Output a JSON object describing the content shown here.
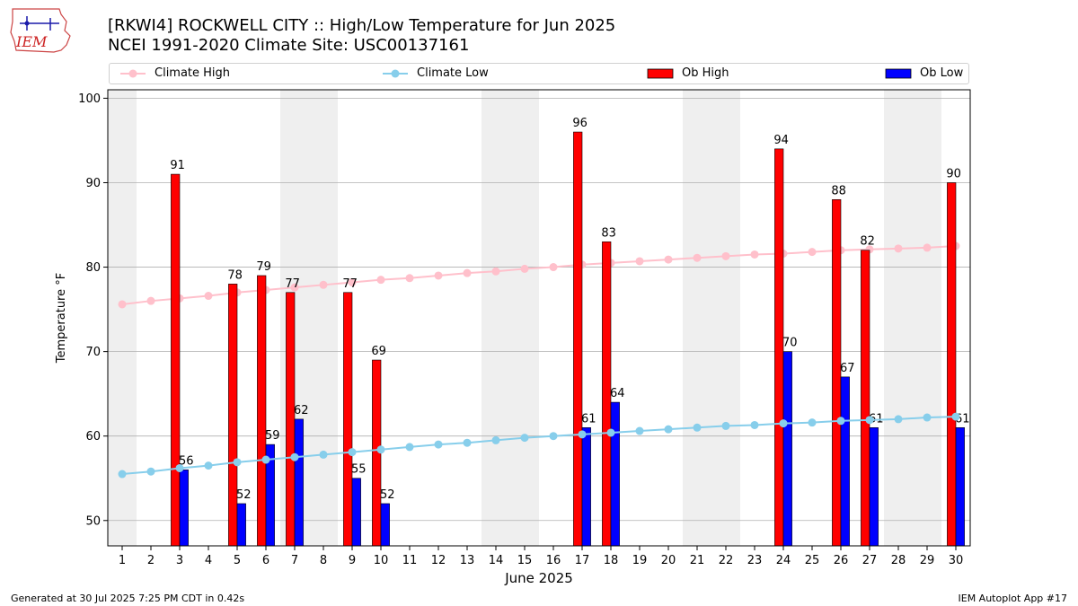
{
  "header": {
    "title_line1": "[RKWI4] ROCKWELL CITY :: High/Low Temperature for Jun 2025",
    "title_line2": "NCEI 1991-2020 Climate Site: USC00137161",
    "logo_text": "IEM"
  },
  "footer": {
    "left": "Generated at 30 Jul 2025 7:25 PM CDT in 0.42s",
    "right": "IEM Autoplot App #17"
  },
  "legend": {
    "climate_high": "Climate High",
    "climate_low": "Climate Low",
    "ob_high": "Ob High",
    "ob_low": "Ob Low"
  },
  "colors": {
    "climate_high": "#ffc0cb",
    "climate_low": "#87ceeb",
    "ob_high": "#ff0000",
    "ob_low": "#0000ff",
    "weekend_band": "#efefef",
    "grid": "#b0b0b0"
  },
  "chart_data": {
    "type": "bar",
    "title": "[RKWI4] ROCKWELL CITY :: High/Low Temperature for Jun 2025",
    "subtitle": "NCEI 1991-2020 Climate Site: USC00137161",
    "xlabel": "June 2025",
    "ylabel": "Temperature °F",
    "xlim": [
      0.5,
      30.5
    ],
    "ylim": [
      47,
      101
    ],
    "yticks": [
      50,
      60,
      70,
      80,
      90,
      100
    ],
    "x": [
      1,
      2,
      3,
      4,
      5,
      6,
      7,
      8,
      9,
      10,
      11,
      12,
      13,
      14,
      15,
      16,
      17,
      18,
      19,
      20,
      21,
      22,
      23,
      24,
      25,
      26,
      27,
      28,
      29,
      30
    ],
    "grid": "horizontal",
    "legend_position": "top",
    "weekend_days": [
      1,
      7,
      8,
      14,
      15,
      21,
      22,
      28,
      29
    ],
    "series": [
      {
        "name": "Climate High",
        "kind": "line",
        "values": [
          75.6,
          76.0,
          76.3,
          76.6,
          77.0,
          77.3,
          77.6,
          77.9,
          78.2,
          78.5,
          78.7,
          79.0,
          79.3,
          79.5,
          79.8,
          80.0,
          80.3,
          80.5,
          80.7,
          80.9,
          81.1,
          81.3,
          81.5,
          81.6,
          81.8,
          82.0,
          82.1,
          82.2,
          82.3,
          82.5
        ]
      },
      {
        "name": "Climate Low",
        "kind": "line",
        "values": [
          55.5,
          55.8,
          56.2,
          56.5,
          56.9,
          57.2,
          57.5,
          57.8,
          58.1,
          58.4,
          58.7,
          59.0,
          59.2,
          59.5,
          59.8,
          60.0,
          60.2,
          60.4,
          60.6,
          60.8,
          61.0,
          61.2,
          61.3,
          61.5,
          61.6,
          61.8,
          61.9,
          62.0,
          62.2,
          62.3
        ]
      },
      {
        "name": "Ob High",
        "kind": "bar",
        "values": [
          null,
          null,
          91,
          null,
          78,
          79,
          77,
          null,
          77,
          69,
          null,
          null,
          null,
          null,
          null,
          null,
          96,
          83,
          null,
          null,
          null,
          null,
          null,
          94,
          null,
          88,
          82,
          null,
          null,
          90
        ]
      },
      {
        "name": "Ob Low",
        "kind": "bar",
        "values": [
          null,
          null,
          56,
          null,
          52,
          59,
          62,
          null,
          55,
          52,
          null,
          null,
          null,
          null,
          null,
          null,
          61,
          64,
          null,
          null,
          null,
          null,
          null,
          70,
          null,
          67,
          61,
          null,
          null,
          61
        ]
      }
    ]
  }
}
